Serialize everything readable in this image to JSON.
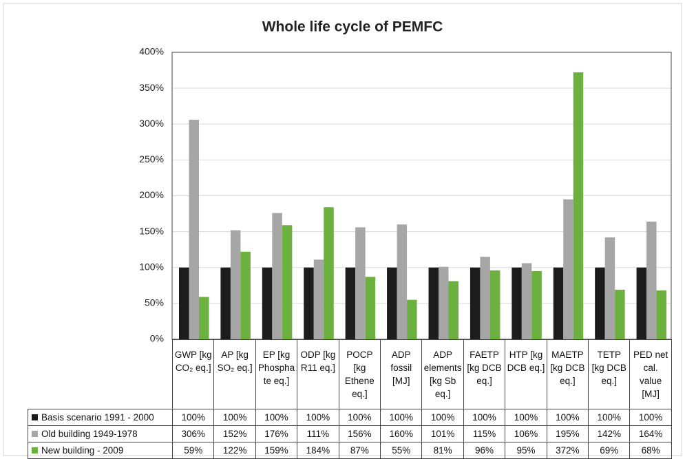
{
  "chart_data": {
    "type": "bar",
    "title": "Whole life cycle of PEMFC",
    "categories": [
      "GWP [kg CO₂ eq.]",
      "AP [kg SO₂ eq.]",
      "EP [kg Phosphate eq.]",
      "ODP [kg R11 eq.]",
      "POCP [kg Ethene eq.]",
      "ADP fossil [MJ]",
      "ADP elements [kg Sb eq.]",
      "FAETP [kg DCB eq.]",
      "HTP [kg DCB eq.]",
      "MAETP [kg DCB eq.]",
      "TETP [kg DCB eq.]",
      "PED net cal. value [MJ]"
    ],
    "series": [
      {
        "name": "Basis scenario 1991 - 2000",
        "color": "#1c1c1c",
        "values": [
          100,
          100,
          100,
          100,
          100,
          100,
          100,
          100,
          100,
          100,
          100,
          100
        ],
        "value_labels": [
          "100%",
          "100%",
          "100%",
          "100%",
          "100%",
          "100%",
          "100%",
          "100%",
          "100%",
          "100%",
          "100%",
          "100%"
        ]
      },
      {
        "name": "Old building 1949-1978",
        "color": "#a6a6a6",
        "values": [
          306,
          152,
          176,
          111,
          156,
          160,
          101,
          115,
          106,
          195,
          142,
          164
        ],
        "value_labels": [
          "306%",
          "152%",
          "176%",
          "111%",
          "156%",
          "160%",
          "101%",
          "115%",
          "106%",
          "195%",
          "142%",
          "164%"
        ]
      },
      {
        "name": "New building - 2009",
        "color": "#6cb040",
        "values": [
          59,
          122,
          159,
          184,
          87,
          55,
          81,
          96,
          95,
          372,
          69,
          68
        ],
        "value_labels": [
          "59%",
          "122%",
          "159%",
          "184%",
          "87%",
          "55%",
          "81%",
          "96%",
          "95%",
          "372%",
          "69%",
          "68%"
        ]
      }
    ],
    "ylim": [
      0,
      400
    ],
    "yticks": [
      {
        "value": 0,
        "label": "0%"
      },
      {
        "value": 50,
        "label": "50%"
      },
      {
        "value": 100,
        "label": "100%"
      },
      {
        "value": 150,
        "label": "150%"
      },
      {
        "value": 200,
        "label": "200%"
      },
      {
        "value": 250,
        "label": "250%"
      },
      {
        "value": 300,
        "label": "300%"
      },
      {
        "value": 350,
        "label": "350%"
      },
      {
        "value": 400,
        "label": "400%"
      }
    ],
    "grid": true
  }
}
